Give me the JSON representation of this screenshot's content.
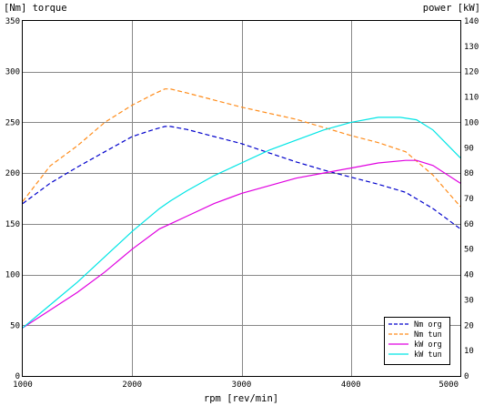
{
  "chart_data": {
    "type": "line",
    "left_axis_title": "[Nm] torque",
    "right_axis_title": "power [kW]",
    "xlabel": "rpm [rev/min]",
    "xlim": [
      1000,
      5000
    ],
    "ylim_left": [
      0,
      350
    ],
    "ylim_right": [
      0,
      140
    ],
    "x_ticks": [
      1000,
      2000,
      3000,
      4000,
      5000
    ],
    "y_left_ticks": [
      0,
      50,
      100,
      150,
      200,
      250,
      300,
      350
    ],
    "y_right_ticks": [
      0,
      10,
      20,
      30,
      40,
      50,
      60,
      70,
      80,
      90,
      100,
      110,
      120,
      130,
      140
    ],
    "grid": true,
    "legend_position": "bottom-right",
    "series": [
      {
        "name": "Nm org",
        "axis": "left",
        "color": "#0000cc",
        "dash": "dashed",
        "x": [
          1000,
          1250,
          1500,
          1750,
          2000,
          2200,
          2300,
          2350,
          2500,
          2750,
          3000,
          3250,
          3500,
          3750,
          4000,
          4250,
          4500,
          4750,
          5000
        ],
        "y": [
          170,
          190,
          206,
          221,
          236,
          243,
          246,
          246,
          243,
          236,
          229,
          220,
          211,
          203,
          196,
          189,
          181,
          165,
          145
        ]
      },
      {
        "name": "Nm tun",
        "axis": "left",
        "color": "#ff8c1a",
        "dash": "dashed",
        "x": [
          1000,
          1250,
          1500,
          1750,
          2000,
          2200,
          2300,
          2350,
          2500,
          2750,
          3000,
          3250,
          3500,
          3750,
          4000,
          4250,
          4500,
          4750,
          5000
        ],
        "y": [
          172,
          207,
          227,
          250,
          267,
          278,
          283,
          283,
          279,
          272,
          265,
          259,
          253,
          245,
          237,
          230,
          221,
          198,
          167
        ]
      },
      {
        "name": "kW org",
        "axis": "right",
        "color": "#e000e0",
        "dash": "solid",
        "x": [
          1000,
          1250,
          1500,
          1750,
          2000,
          2250,
          2350,
          2500,
          2750,
          3000,
          3250,
          3500,
          3750,
          4000,
          4250,
          4500,
          4600,
          4750,
          5000
        ],
        "y": [
          19,
          26,
          33,
          41,
          50,
          58,
          60,
          63,
          68,
          72,
          75,
          78,
          80,
          82,
          84,
          85,
          85,
          83,
          76
        ]
      },
      {
        "name": "kW tun",
        "axis": "right",
        "color": "#00e5e5",
        "dash": "solid",
        "x": [
          1000,
          1250,
          1500,
          1750,
          2000,
          2250,
          2350,
          2500,
          2750,
          3000,
          3250,
          3500,
          3750,
          4000,
          4250,
          4450,
          4600,
          4750,
          5000
        ],
        "y": [
          19,
          28,
          37,
          47,
          57,
          66,
          69,
          73,
          79,
          84,
          89,
          93,
          97,
          100,
          102,
          102,
          101,
          97,
          86
        ]
      }
    ]
  }
}
